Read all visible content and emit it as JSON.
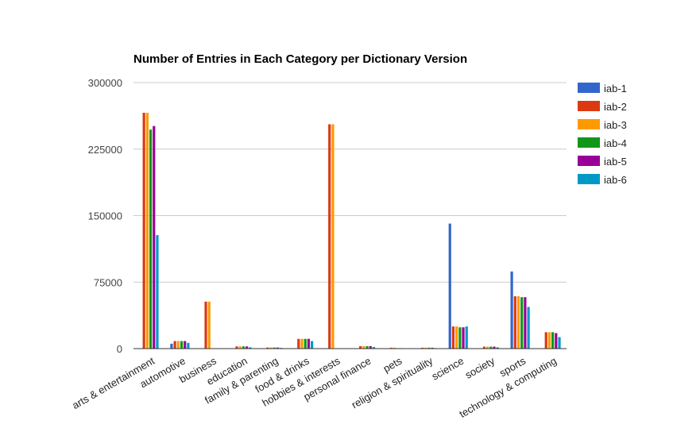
{
  "chart_data": {
    "type": "bar",
    "title": "Number of Entries in Each Category per Dictionary Version",
    "xlabel": "",
    "ylabel": "",
    "ylim": [
      0,
      300000
    ],
    "yticks": [
      0,
      75000,
      150000,
      225000,
      300000
    ],
    "ytick_labels": [
      "0",
      "75000",
      "150000",
      "225000",
      "300000"
    ],
    "grid": true,
    "legend_position": "right",
    "categories": [
      "arts & entertainment",
      "automotive",
      "business",
      "education",
      "family & parenting",
      "food & drinks",
      "hobbies & interests",
      "personal finance",
      "pets",
      "religion & spirituality",
      "science",
      "society",
      "sports",
      "technology & computing"
    ],
    "series": [
      {
        "name": "iab-1",
        "color": "#3366cc",
        "values": [
          0,
          5500,
          0,
          0,
          0,
          0,
          0,
          0,
          0,
          0,
          141000,
          0,
          87000,
          0
        ]
      },
      {
        "name": "iab-2",
        "color": "#dc3912",
        "values": [
          266000,
          8500,
          53000,
          2500,
          1200,
          11000,
          253000,
          2800,
          1000,
          1000,
          25000,
          2200,
          59000,
          18500
        ]
      },
      {
        "name": "iab-3",
        "color": "#ff9900",
        "values": [
          266000,
          8500,
          53000,
          2500,
          1200,
          11000,
          253000,
          2800,
          1000,
          1000,
          25000,
          2200,
          59000,
          18500
        ]
      },
      {
        "name": "iab-4",
        "color": "#109618",
        "values": [
          247000,
          8500,
          0,
          2500,
          1200,
          11000,
          0,
          2800,
          500,
          1000,
          24000,
          2200,
          58000,
          18500
        ]
      },
      {
        "name": "iab-5",
        "color": "#990099",
        "values": [
          251000,
          8500,
          0,
          2500,
          1200,
          11000,
          0,
          2800,
          500,
          1000,
          24000,
          2200,
          58000,
          17500
        ]
      },
      {
        "name": "iab-6",
        "color": "#0099c6",
        "values": [
          128000,
          6500,
          0,
          1500,
          800,
          8500,
          0,
          1800,
          300,
          600,
          25000,
          1500,
          47000,
          13000
        ]
      }
    ]
  }
}
